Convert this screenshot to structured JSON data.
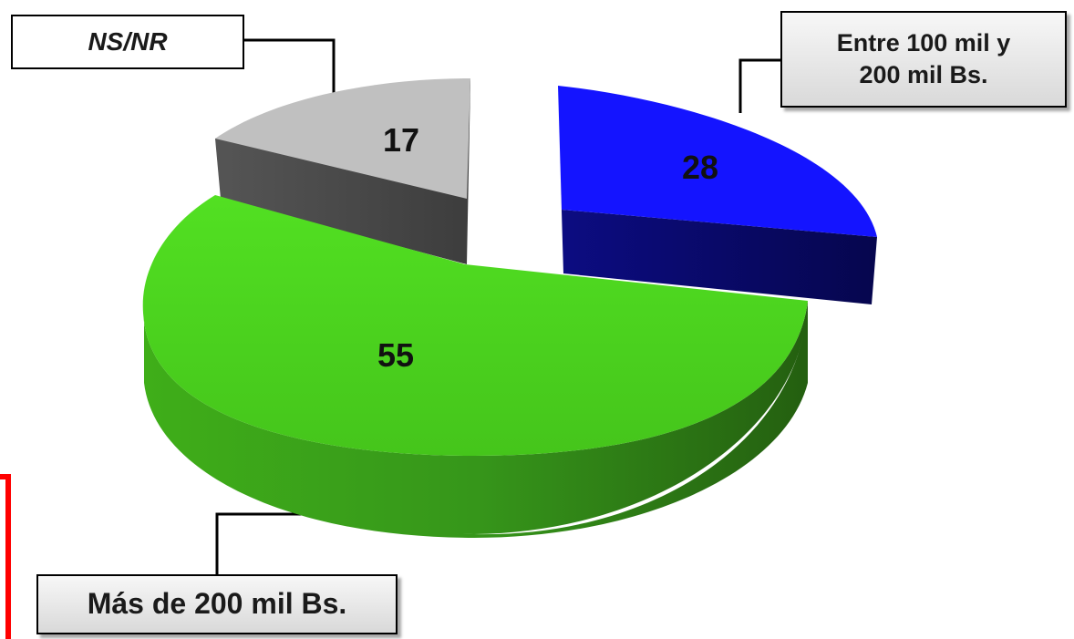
{
  "chart_data": {
    "type": "pie",
    "title": "",
    "slices": [
      {
        "name": "Entre 100 mil y 200 mil Bs.",
        "value": 28,
        "color": "#1a1aff",
        "side_color": "#0a0a6e"
      },
      {
        "name": "Más de 200 mil Bs.",
        "value": 55,
        "color": "#4cdc1e",
        "side_color": "#2c7a12"
      },
      {
        "name": "NS/NR",
        "value": 17,
        "color": "#bfbfbf",
        "side_color": "#4d4d4d"
      }
    ]
  },
  "callouts": {
    "entre": {
      "line1": "Entre 100 mil y",
      "line2": "200 mil Bs."
    },
    "mas": "Más de 200 mil Bs.",
    "nsnr": "NS/NR"
  },
  "decoration": {
    "red_mark_color": "#ff0000"
  }
}
